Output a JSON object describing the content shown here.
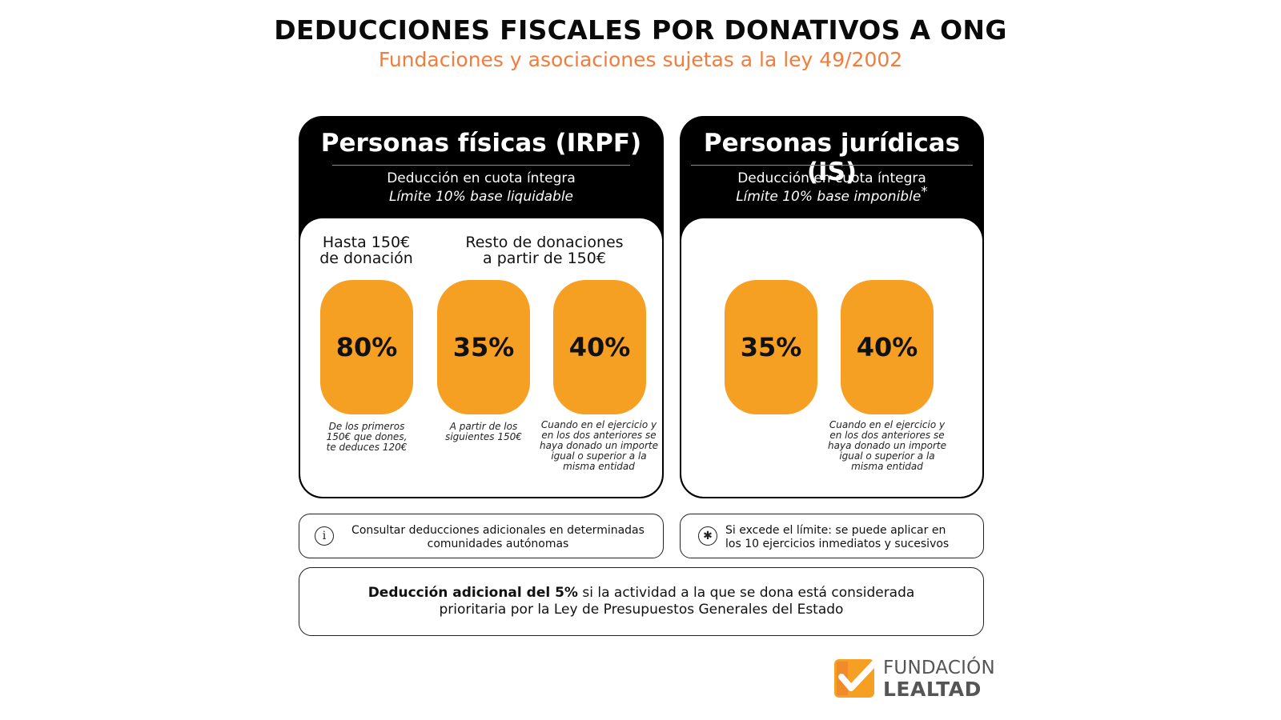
{
  "header": {
    "title": "DEDUCCIONES FISCALES POR DONATIVOS A ONG",
    "subtitle": "Fundaciones y asociaciones sujetas a la ley 49/2002"
  },
  "colors": {
    "accent_orange": "#f5a023",
    "subtitle_orange": "#f37c3c",
    "panel_black": "#000000"
  },
  "personas_fisicas": {
    "title": "Personas físicas (IRPF)",
    "line1": "Deducción en cuota íntegra",
    "line2": "Límite 10% base liquidable",
    "col1_heading": "Hasta 150€\nde donación",
    "col2_heading": "Resto de donaciones\na partir de 150€",
    "pills": [
      {
        "value": "80%",
        "note": "De los primeros\n150€ que dones,\nte deduces 120€"
      },
      {
        "value": "35%",
        "note": "A partir de los\nsiguientes 150€"
      },
      {
        "value": "40%",
        "note": "Cuando en el ejercicio y\nen los dos anteriores se\nhaya donado un importe\nigual o superior a la\nmisma entidad"
      }
    ]
  },
  "personas_juridicas": {
    "title": "Personas jurídicas (IS)",
    "line1": "Deducción en cuota íntegra",
    "line2": "Límite 10% base imponible",
    "asterisk": "*",
    "pills": [
      {
        "value": "35%",
        "note": ""
      },
      {
        "value": "40%",
        "note": "Cuando en el ejercicio y\nen los dos anteriores se\nhaya donado un importe\nigual o superior a la\nmisma entidad"
      }
    ]
  },
  "info": {
    "left_icon": "info-icon",
    "left_text": "Consultar deducciones adicionales en determinadas\ncomunidades autónomas",
    "right_icon": "asterisk-icon",
    "right_text": "Si excede el límite: se puede aplicar en\nlos 10 ejercicios inmediatos y sucesivos"
  },
  "bottom": {
    "bold": "Deducción adicional del 5%",
    "rest": " si la actividad a la que se dona está considerada\nprioritaria por la Ley de Presupuestos Generales del Estado"
  },
  "logo": {
    "word1": "FUNDACIÓN",
    "word2": "LEALTAD"
  }
}
